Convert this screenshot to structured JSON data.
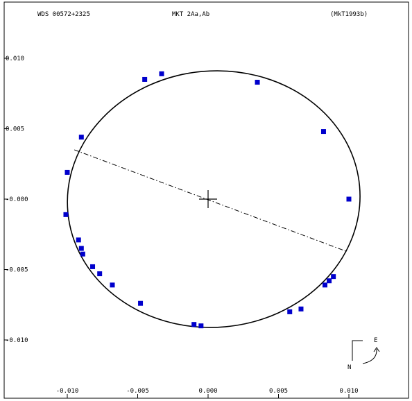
{
  "header": {
    "left": "WDS 00572+2325",
    "center": "MKT   2Aa,Ab",
    "right": "(MkT1993b)"
  },
  "compass": {
    "east_label": "E",
    "north_label": "N"
  },
  "chart_data": {
    "type": "scatter",
    "title": "",
    "xlabel": "",
    "ylabel": "",
    "xlim": [
      -0.01,
      0.01
    ],
    "ylim": [
      -0.01,
      0.01
    ],
    "x_ticks": [
      -0.01,
      -0.005,
      0.0,
      0.005,
      0.01
    ],
    "x_tick_labels": [
      "-0.010",
      "-0.005",
      "0.000",
      "0.005",
      "0.010"
    ],
    "y_ticks": [
      0.01,
      0.005,
      0.0,
      -0.005,
      -0.01
    ],
    "y_tick_labels": [
      "0.010",
      "0.005",
      "-0.000",
      "-0.005",
      "-0.010"
    ],
    "grid": false,
    "orbit": {
      "center": [
        0.0004,
        0.0
      ],
      "semi_major": 0.0104,
      "semi_minor": 0.0091,
      "rotation_deg": -5
    },
    "node_line": [
      [
        -0.0095,
        0.0035
      ],
      [
        0.0098,
        -0.0037
      ]
    ],
    "origin_marker": [
      0.0,
      0.0
    ],
    "color": "#0000cc",
    "points": [
      [
        -0.0045,
        0.0085
      ],
      [
        -0.0033,
        0.0089
      ],
      [
        0.0035,
        0.0083
      ],
      [
        0.0082,
        0.0048
      ],
      [
        0.01,
        0.0
      ],
      [
        0.0089,
        -0.0055
      ],
      [
        0.0086,
        -0.0058
      ],
      [
        0.0083,
        -0.0061
      ],
      [
        0.0066,
        -0.0078
      ],
      [
        0.0058,
        -0.008
      ],
      [
        -0.0005,
        -0.009
      ],
      [
        -0.001,
        -0.0089
      ],
      [
        -0.0048,
        -0.0074
      ],
      [
        -0.0068,
        -0.0061
      ],
      [
        -0.0077,
        -0.0053
      ],
      [
        -0.0082,
        -0.0048
      ],
      [
        -0.0089,
        -0.0039
      ],
      [
        -0.009,
        -0.0035
      ],
      [
        -0.0092,
        -0.0029
      ],
      [
        -0.0101,
        -0.0011
      ],
      [
        -0.01,
        0.0019
      ],
      [
        -0.009,
        0.0044
      ]
    ]
  }
}
